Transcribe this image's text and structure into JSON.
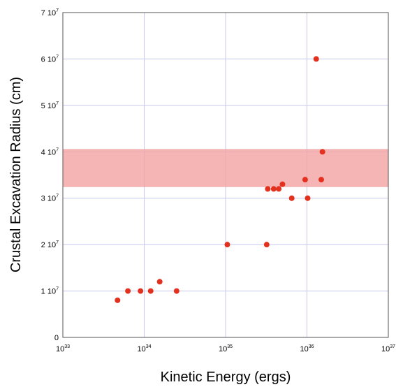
{
  "chart_data": {
    "type": "scatter",
    "title": "",
    "xlabel": "Kinetic Energy (ergs)",
    "ylabel": "Crustal Excavation Radius (cm)",
    "x_scale": "log",
    "xlim": [
      1e+33,
      1e+37
    ],
    "ylim": [
      0,
      70000000
    ],
    "grid": true,
    "x_ticks": [
      {
        "value": 1e+33,
        "base": "10",
        "exp": "33"
      },
      {
        "value": 1e+34,
        "base": "10",
        "exp": "34"
      },
      {
        "value": 1e+35,
        "base": "10",
        "exp": "35"
      },
      {
        "value": 1e+36,
        "base": "10",
        "exp": "36"
      },
      {
        "value": 1e+37,
        "base": "10",
        "exp": "37"
      }
    ],
    "y_ticks": [
      {
        "value": 0,
        "mant": "0",
        "base": "",
        "exp": ""
      },
      {
        "value": 10000000,
        "mant": "1",
        "base": "10",
        "exp": "7"
      },
      {
        "value": 20000000,
        "mant": "2",
        "base": "10",
        "exp": "7"
      },
      {
        "value": 30000000,
        "mant": "3",
        "base": "10",
        "exp": "7"
      },
      {
        "value": 40000000,
        "mant": "4",
        "base": "10",
        "exp": "7"
      },
      {
        "value": 50000000,
        "mant": "5",
        "base": "10",
        "exp": "7"
      },
      {
        "value": 60000000,
        "mant": "6",
        "base": "10",
        "exp": "7"
      },
      {
        "value": 70000000,
        "mant": "7",
        "base": "10",
        "exp": "7"
      }
    ],
    "band": {
      "y_min": 32500000,
      "y_max": 40500000,
      "color": "#f4a3a3"
    },
    "marker_color": "#e3311f",
    "series": [
      {
        "points": [
          {
            "x": 4.7e+33,
            "y": 8000000
          },
          {
            "x": 6.3e+33,
            "y": 10000000
          },
          {
            "x": 9e+33,
            "y": 10000000
          },
          {
            "x": 1.2e+34,
            "y": 10000000
          },
          {
            "x": 1.55e+34,
            "y": 12000000
          },
          {
            "x": 2.5e+34,
            "y": 10000000
          },
          {
            "x": 1.05e+35,
            "y": 20000000
          },
          {
            "x": 3.2e+35,
            "y": 20000000
          },
          {
            "x": 3.3e+35,
            "y": 32000000
          },
          {
            "x": 3.9e+35,
            "y": 32000000
          },
          {
            "x": 4.5e+35,
            "y": 32000000
          },
          {
            "x": 5e+35,
            "y": 33000000
          },
          {
            "x": 6.5e+35,
            "y": 30000000
          },
          {
            "x": 9.5e+35,
            "y": 34000000
          },
          {
            "x": 1.02e+36,
            "y": 30000000
          },
          {
            "x": 1.3e+36,
            "y": 60000000
          },
          {
            "x": 1.5e+36,
            "y": 34000000
          },
          {
            "x": 1.55e+36,
            "y": 40000000
          }
        ]
      }
    ]
  }
}
